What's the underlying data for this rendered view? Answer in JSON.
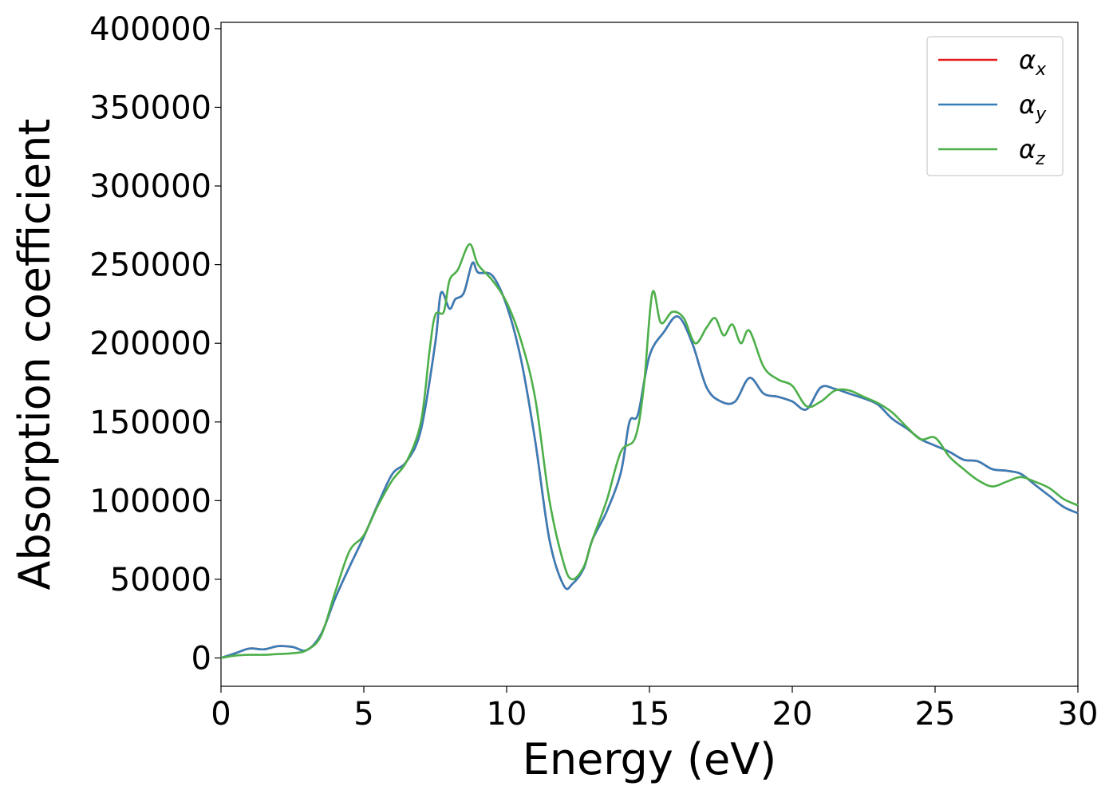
{
  "chart_data": {
    "type": "line",
    "xlabel": "Energy (eV)",
    "ylabel": "Absorption coefficient",
    "xlim": [
      0,
      30
    ],
    "ylim": [
      -18000,
      404000
    ],
    "x_ticks": [
      "0",
      "5",
      "10",
      "15",
      "20",
      "25",
      "30"
    ],
    "y_ticks": [
      "0",
      "50000",
      "100000",
      "150000",
      "200000",
      "250000",
      "300000",
      "350000",
      "400000"
    ],
    "grid": false,
    "legend_position": "top-right",
    "series": [
      {
        "name": "α",
        "name_subscript": "x",
        "color": "#e41a1c",
        "x": [
          0,
          0.5,
          1,
          1.5,
          2,
          2.5,
          3,
          3.5,
          4,
          4.5,
          5,
          5.5,
          6,
          6.5,
          7,
          7.5,
          7.7,
          8,
          8.2,
          8.5,
          8.8,
          9,
          9.5,
          10,
          10.5,
          11,
          11.5,
          12,
          12.3,
          12.7,
          13,
          13.5,
          14,
          14.3,
          14.6,
          15,
          15.5,
          16,
          16.5,
          17,
          17.5,
          18,
          18.5,
          19,
          19.5,
          20,
          20.5,
          21,
          21.5,
          22,
          22.5,
          23,
          23.5,
          24,
          24.5,
          25,
          25.5,
          26,
          26.5,
          27,
          27.5,
          28,
          28.5,
          29,
          29.5,
          30
        ],
        "values": [
          0,
          3000,
          6000,
          5500,
          7500,
          7000,
          5000,
          15000,
          38000,
          58000,
          77000,
          98000,
          117000,
          125000,
          145000,
          200000,
          232000,
          222000,
          228000,
          232000,
          251000,
          245000,
          243000,
          224000,
          190000,
          138000,
          75000,
          46000,
          47000,
          57000,
          75000,
          93000,
          118000,
          150000,
          155000,
          192000,
          207000,
          217000,
          200000,
          172000,
          163000,
          163000,
          178000,
          168000,
          166000,
          163000,
          158000,
          172000,
          171000,
          168000,
          165000,
          161000,
          152000,
          146000,
          139000,
          135000,
          131000,
          126000,
          125000,
          120000,
          119000,
          117000,
          110000,
          103000,
          96000,
          92000
        ]
      },
      {
        "name": "α",
        "name_subscript": "y",
        "color": "#377eb8",
        "x": [
          0,
          0.5,
          1,
          1.5,
          2,
          2.5,
          3,
          3.5,
          4,
          4.5,
          5,
          5.5,
          6,
          6.5,
          7,
          7.5,
          7.7,
          8,
          8.2,
          8.5,
          8.8,
          9,
          9.5,
          10,
          10.5,
          11,
          11.5,
          12,
          12.3,
          12.7,
          13,
          13.5,
          14,
          14.3,
          14.6,
          15,
          15.5,
          16,
          16.5,
          17,
          17.5,
          18,
          18.5,
          19,
          19.5,
          20,
          20.5,
          21,
          21.5,
          22,
          22.5,
          23,
          23.5,
          24,
          24.5,
          25,
          25.5,
          26,
          26.5,
          27,
          27.5,
          28,
          28.5,
          29,
          29.5,
          30
        ],
        "values": [
          0,
          3000,
          6000,
          5500,
          7500,
          7000,
          5000,
          15000,
          38000,
          58000,
          77000,
          98000,
          117000,
          125000,
          145000,
          200000,
          232000,
          222000,
          228000,
          232000,
          251000,
          245000,
          243000,
          224000,
          190000,
          138000,
          75000,
          46000,
          47000,
          57000,
          75000,
          93000,
          118000,
          150000,
          155000,
          192000,
          207000,
          217000,
          200000,
          172000,
          163000,
          163000,
          178000,
          168000,
          166000,
          163000,
          158000,
          172000,
          171000,
          168000,
          165000,
          161000,
          152000,
          146000,
          139000,
          135000,
          131000,
          126000,
          125000,
          120000,
          119000,
          117000,
          110000,
          103000,
          96000,
          92000
        ]
      },
      {
        "name": "α",
        "name_subscript": "z",
        "color": "#4daf4a",
        "x": [
          0,
          0.5,
          1,
          1.5,
          2,
          2.5,
          3,
          3.5,
          4,
          4.5,
          5,
          5.5,
          6,
          6.5,
          7,
          7.3,
          7.5,
          7.8,
          8,
          8.3,
          8.7,
          9,
          9.5,
          10,
          10.5,
          11,
          11.5,
          12,
          12.3,
          12.7,
          13,
          13.5,
          14,
          14.5,
          14.8,
          15.1,
          15.4,
          15.8,
          16.2,
          16.6,
          17,
          17.3,
          17.6,
          17.9,
          18.2,
          18.5,
          19,
          19.5,
          20,
          20.5,
          21,
          21.5,
          22,
          22.5,
          23,
          23.5,
          24,
          24.5,
          25,
          25.5,
          26,
          26.5,
          27,
          27.5,
          28,
          28.5,
          29,
          29.5,
          30
        ],
        "values": [
          0,
          1500,
          2000,
          2000,
          2500,
          3000,
          5000,
          14000,
          42000,
          68000,
          78000,
          97000,
          113000,
          125000,
          150000,
          195000,
          218000,
          220000,
          240000,
          247000,
          263000,
          250000,
          240000,
          226000,
          202000,
          165000,
          100000,
          60000,
          50000,
          58000,
          75000,
          100000,
          131000,
          140000,
          172000,
          232000,
          213000,
          220000,
          216000,
          200000,
          210000,
          216000,
          205000,
          212000,
          200000,
          208000,
          185000,
          177000,
          173000,
          160000,
          163000,
          170000,
          170000,
          166000,
          162000,
          156000,
          147000,
          139000,
          140000,
          128000,
          120000,
          113000,
          109000,
          112000,
          115000,
          112000,
          108000,
          101000,
          97000
        ]
      }
    ]
  }
}
